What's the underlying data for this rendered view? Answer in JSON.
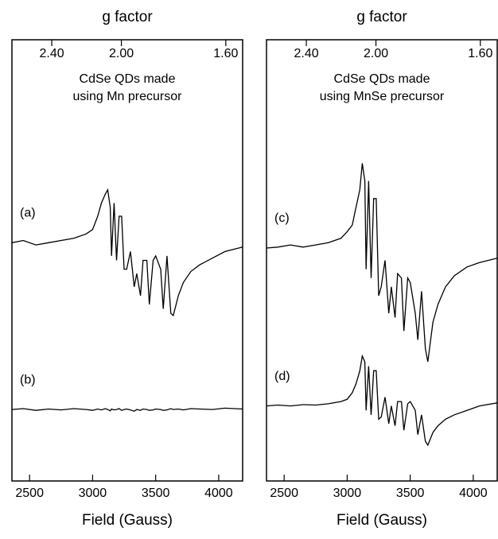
{
  "chart_data": [
    {
      "type": "line",
      "x2label": "g factor",
      "xlabel": "Field (Gauss)",
      "annotation": [
        "CdSe QDs made",
        "using Mn precursor"
      ],
      "xlim": [
        2360,
        4190
      ],
      "xticks": [
        2500,
        3000,
        3500,
        4000
      ],
      "x2lim": [
        2.71,
        1.55
      ],
      "x2scale": "reciprocal",
      "x2ticks": [
        {
          "value": 2.4,
          "label": "2.40"
        },
        {
          "value": 2.0,
          "label": "2.00"
        },
        {
          "value": 1.6,
          "label": "1.60"
        }
      ],
      "ylim": [
        0,
        100
      ],
      "x": [
        2360,
        2450,
        2550,
        2650,
        2750,
        2850,
        2950,
        3000,
        3040,
        3070,
        3100,
        3120,
        3140,
        3150,
        3170,
        3190,
        3210,
        3230,
        3250,
        3270,
        3300,
        3330,
        3350,
        3380,
        3400,
        3430,
        3450,
        3480,
        3500,
        3540,
        3560,
        3590,
        3620,
        3640,
        3680,
        3720,
        3780,
        3850,
        3950,
        4050,
        4190
      ],
      "series": [
        {
          "name": "(a)",
          "color": "#000000",
          "values": [
            54,
            54.5,
            53.5,
            54,
            54.5,
            55,
            56,
            57,
            60,
            63,
            65,
            66,
            62,
            51,
            63,
            50,
            60,
            60,
            48,
            48,
            52,
            44,
            47,
            42,
            50,
            50,
            40,
            50,
            51,
            48,
            39,
            51,
            38,
            37.5,
            42,
            45,
            47.5,
            49,
            50.5,
            52,
            53
          ]
        },
        {
          "name": "(b)",
          "color": "#000000",
          "values": [
            16.2,
            16.4,
            16,
            16.3,
            16.1,
            16.4,
            16.2,
            16,
            16.3,
            16.1,
            16.4,
            16.2,
            15.9,
            16.3,
            16.1,
            16.2,
            16.4,
            16,
            16.2,
            16.3,
            16.1,
            15.8,
            16.2,
            16,
            16.3,
            16.2,
            16,
            16.1,
            16.3,
            16.2,
            16,
            16.1,
            16.4,
            16.2,
            16.3,
            16.1,
            16.4,
            16.3,
            16.2,
            16.5,
            16.3
          ]
        }
      ]
    },
    {
      "type": "line",
      "x2label": "g factor",
      "xlabel": "Field (Gauss)",
      "annotation": [
        "CdSe QDs made",
        "using MnSe precursor"
      ],
      "xlim": [
        2360,
        4190
      ],
      "xticks": [
        2500,
        3000,
        3500,
        4000
      ],
      "x2lim": [
        2.71,
        1.55
      ],
      "x2scale": "reciprocal",
      "x2ticks": [
        {
          "value": 2.4,
          "label": "2.40"
        },
        {
          "value": 2.0,
          "label": "2.00"
        },
        {
          "value": 1.6,
          "label": "1.60"
        }
      ],
      "ylim": [
        0,
        100
      ],
      "x": [
        2360,
        2450,
        2550,
        2650,
        2750,
        2850,
        2950,
        3000,
        3040,
        3070,
        3100,
        3120,
        3140,
        3150,
        3170,
        3190,
        3210,
        3230,
        3250,
        3270,
        3300,
        3330,
        3350,
        3380,
        3400,
        3430,
        3450,
        3480,
        3500,
        3540,
        3560,
        3590,
        3620,
        3640,
        3680,
        3720,
        3780,
        3850,
        3950,
        4050,
        4190
      ],
      "series": [
        {
          "name": "(c)",
          "color": "#000000",
          "values": [
            52.8,
            53,
            53.5,
            53,
            53.5,
            54,
            55,
            56.5,
            58,
            62,
            66,
            72,
            68,
            48,
            68,
            46,
            64,
            64,
            42,
            44,
            50,
            38,
            44,
            37,
            47,
            46,
            34,
            46,
            45,
            38,
            32,
            43,
            30,
            27,
            36,
            40,
            44,
            46.5,
            48.5,
            49.5,
            50.5
          ]
        },
        {
          "name": "(d)",
          "color": "#000000",
          "values": [
            17,
            17.2,
            17,
            17.3,
            17.2,
            17.5,
            18,
            18.5,
            20,
            22,
            25,
            28.3,
            27,
            16,
            26,
            15,
            25,
            25,
            14,
            14.5,
            19,
            13,
            17,
            12.5,
            18,
            18,
            11.5,
            17.5,
            18,
            16,
            10.5,
            15,
            9,
            8.1,
            11,
            12.5,
            14,
            15,
            16,
            17,
            17.7
          ]
        }
      ]
    }
  ]
}
